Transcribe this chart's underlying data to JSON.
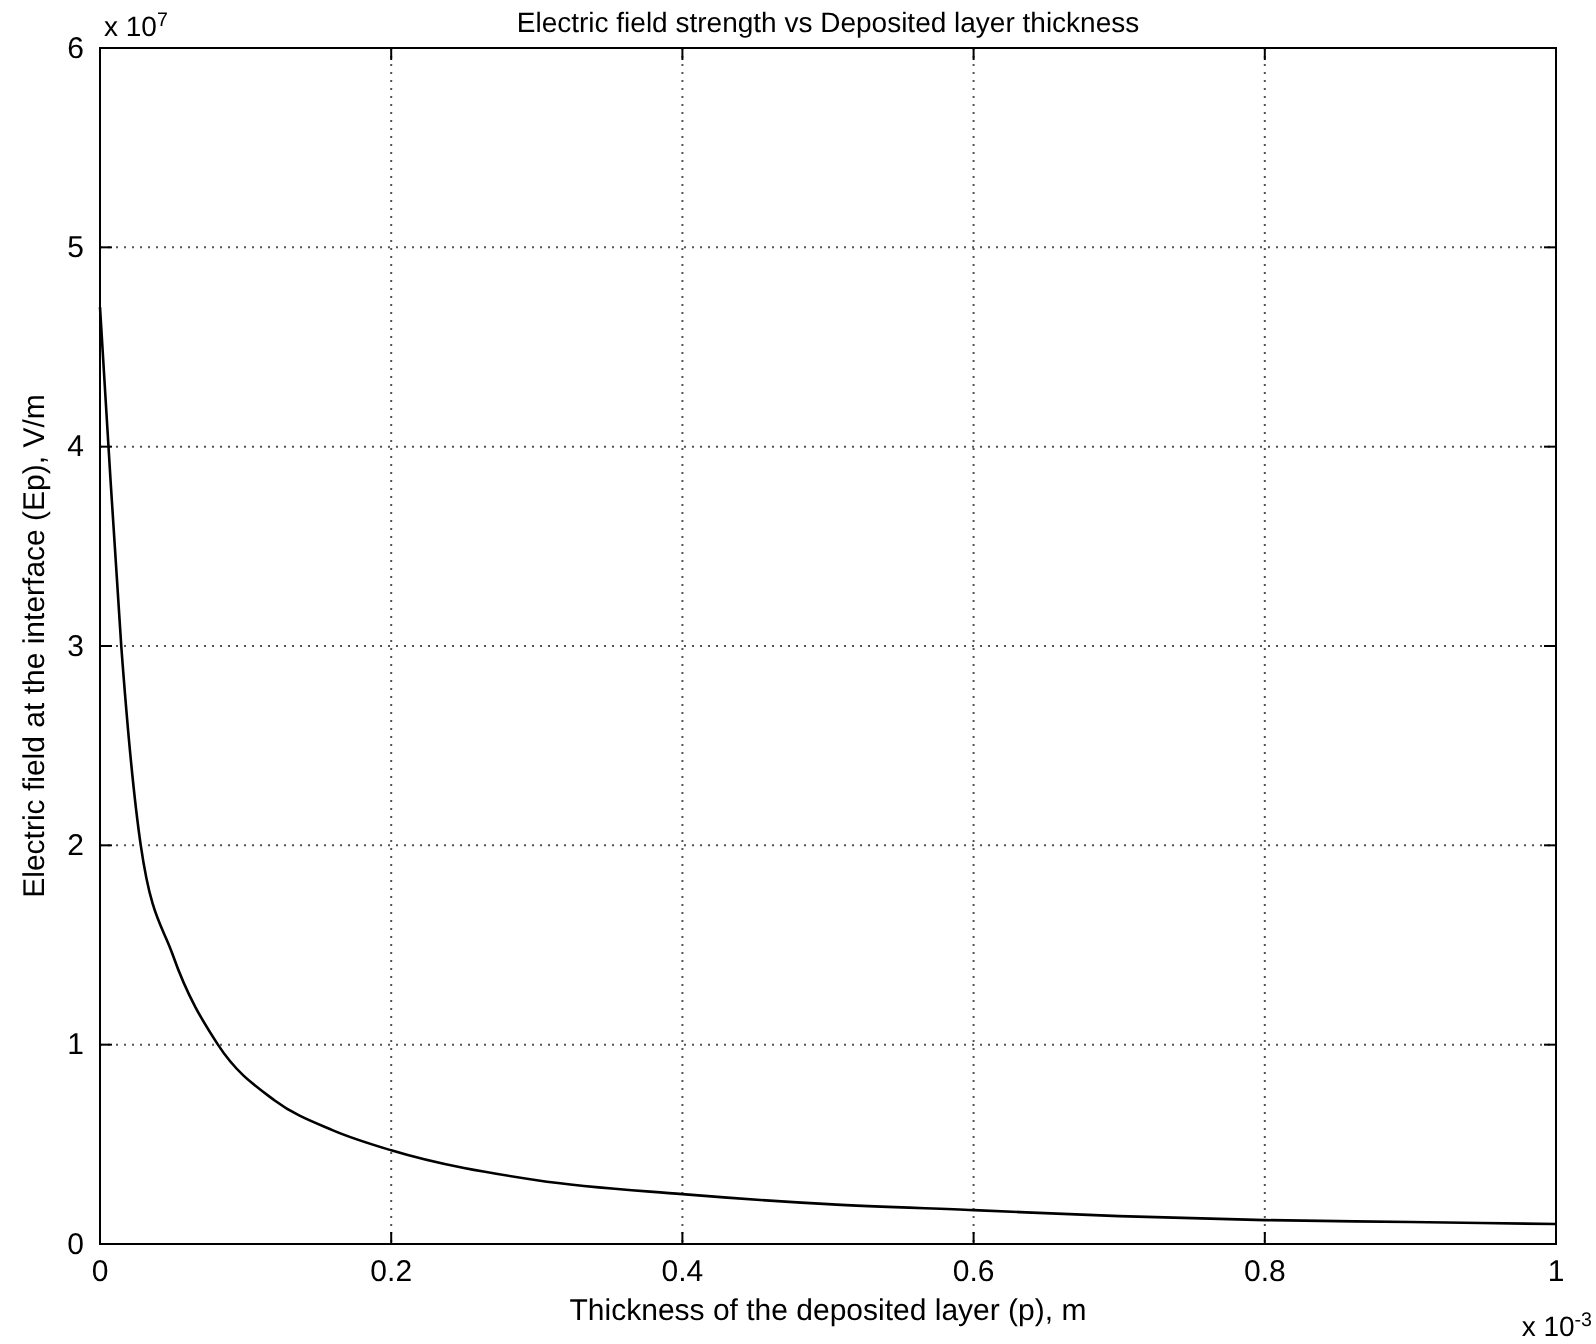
{
  "chart_data": {
    "type": "line",
    "title": "Electric field strength vs Deposited layer thickness",
    "xlabel": "Thickness of the deposited layer (p), m",
    "ylabel": "Electric field at the interface (Ep), V/m",
    "annotations": [
      "x 10$^{7}$",
      "x 10$^{-3}$"
    ],
    "x": [
      0,
      0.005,
      0.0146,
      0.028,
      0.05,
      0.081,
      0.12,
      0.16,
      0.2,
      0.3,
      0.4,
      0.5,
      0.6,
      0.7,
      0.8,
      0.9,
      1
    ],
    "series": [
      {
        "color": "#000000",
        "values": [
          4.7,
          4.1,
          3.0,
          2.0,
          1.45,
          1.0,
          0.72,
          0.57,
          0.47,
          0.32,
          0.25,
          0.2,
          0.17,
          0.14,
          0.12,
          0.11,
          0.1
        ]
      }
    ],
    "xlim": [
      0,
      1
    ],
    "xticks": [
      0,
      0.2,
      0.4,
      0.6,
      0.8,
      1
    ],
    "ylim": [
      0,
      6
    ],
    "yticks": [
      0,
      1,
      2,
      3,
      4,
      5,
      6
    ],
    "grid": true,
    "line_style": "solid"
  }
}
